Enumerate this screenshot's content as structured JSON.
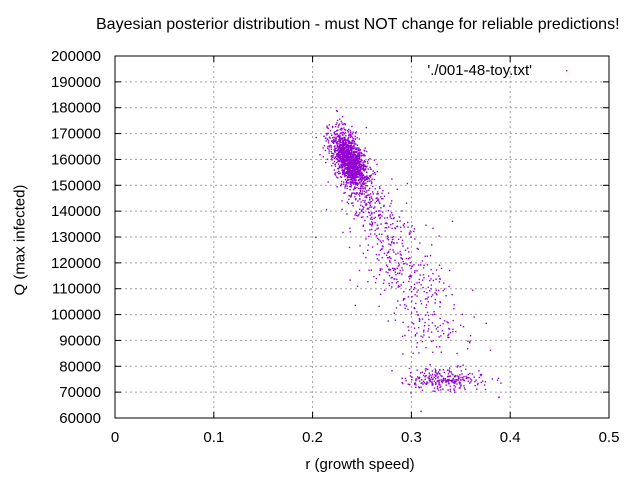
{
  "chart_data": {
    "type": "scatter",
    "title": "Bayesian posterior distribution - must NOT change for reliable predictions!",
    "xlabel": "r (growth speed)",
    "ylabel": "Q (max infected)",
    "xlim": [
      0,
      0.5
    ],
    "ylim": [
      60000,
      200000
    ],
    "x_ticks": [
      0,
      0.1,
      0.2,
      0.3,
      0.4,
      0.5
    ],
    "x_tick_labels": [
      "0",
      "0.1",
      "0.2",
      "0.3",
      "0.4",
      "0.5"
    ],
    "y_ticks": [
      60000,
      70000,
      80000,
      90000,
      100000,
      110000,
      120000,
      130000,
      140000,
      150000,
      160000,
      170000,
      180000,
      190000,
      200000
    ],
    "y_tick_labels": [
      "60000",
      "70000",
      "80000",
      "90000",
      "100000",
      "110000",
      "120000",
      "130000",
      "140000",
      "150000",
      "160000",
      "170000",
      "180000",
      "190000",
      "200000"
    ],
    "grid": true,
    "legend_position": "top-right",
    "series": [
      {
        "name": "'./001-48-toy.txt'",
        "color": "#9400d3",
        "clusters": [
          {
            "cx": 0.237,
            "cy": 160000,
            "sx": 0.009,
            "sy": 5500,
            "n": 1400,
            "rho": -0.55
          },
          {
            "cx": 0.255,
            "cy": 143000,
            "sx": 0.015,
            "sy": 8000,
            "n": 220,
            "rho": -0.6
          },
          {
            "cx": 0.285,
            "cy": 122000,
            "sx": 0.022,
            "sy": 12000,
            "n": 230,
            "rho": -0.5
          },
          {
            "cx": 0.315,
            "cy": 100000,
            "sx": 0.022,
            "sy": 12000,
            "n": 170,
            "rho": -0.4
          },
          {
            "cx": 0.335,
            "cy": 75000,
            "sx": 0.018,
            "sy": 2000,
            "n": 260,
            "rho": 0
          }
        ]
      }
    ]
  }
}
